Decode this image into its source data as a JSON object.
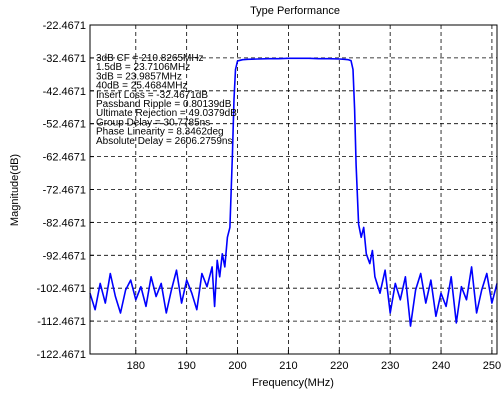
{
  "chart_data": {
    "type": "line",
    "title": "Type Performance",
    "xlabel": "Frequency(MHz)",
    "ylabel": "Magnitude(dB)",
    "xlim": [
      171,
      251
    ],
    "ylim": [
      -122.4671,
      -22.4671
    ],
    "x_ticks": [
      180,
      190,
      200,
      210,
      220,
      230,
      240,
      250
    ],
    "x_tick_labels": [
      "180",
      "190",
      "200",
      "210",
      "220",
      "230",
      "240",
      "250"
    ],
    "y_ticks": [
      -22.4671,
      -32.4671,
      -42.4671,
      -52.4671,
      -62.4671,
      -72.4671,
      -82.4671,
      -92.4671,
      -102.4671,
      -112.4671,
      -122.4671
    ],
    "y_tick_labels": [
      "-22.4671",
      "-32.4671",
      "-42.4671",
      "-52.4671",
      "-62.4671",
      "-72.4671",
      "-82.4671",
      "-92.4671",
      "-102.4671",
      "-112.4671",
      "-122.4671"
    ],
    "grid": true,
    "line_color": "#0000ff",
    "annotations": [
      "3dB CF = 210.8265MHz",
      "1.5dB = 23.7106MHz",
      "3dB = 23.9857MHz",
      "40dB = 25.4684MHz",
      "Insert Loss = -32.4671dB",
      "Passband Ripple = 0.80139dB",
      "Ultimate Rejection = 49.0379dB",
      "Group Delay = 30.7785ns",
      "Phase Linearity = 8.3462deg",
      "Absolute Delay = 2606.2759ns"
    ],
    "series": [
      {
        "x": [
          171,
          172,
          173,
          174,
          175,
          176,
          177,
          178,
          179,
          180,
          181,
          182,
          183,
          184,
          185,
          186,
          187,
          188,
          189,
          190,
          191,
          192,
          193,
          194,
          195,
          195.5,
          196,
          196.5,
          197,
          197.5,
          198,
          198.5,
          199,
          199.3,
          199.6,
          200,
          200.5,
          201,
          202,
          204,
          206,
          208,
          210,
          212,
          214,
          216,
          218,
          220,
          221,
          221.8,
          222.3,
          222.7,
          223,
          223.3,
          223.8,
          224.3,
          224.8,
          225.3,
          226,
          226.5,
          227,
          228,
          229,
          230,
          231,
          232,
          233,
          234,
          235,
          236,
          237,
          238,
          239,
          240,
          241,
          242,
          243,
          244,
          245,
          246,
          247,
          248,
          249,
          250,
          251
        ],
        "y": [
          -104,
          -109,
          -101,
          -107,
          -98,
          -105,
          -110,
          -103,
          -100,
          -106,
          -102,
          -108,
          -99,
          -105,
          -101,
          -110,
          -103,
          -97,
          -107,
          -100,
          -104,
          -109,
          -98,
          -102,
          -96,
          -108,
          -94,
          -99,
          -92,
          -96,
          -87,
          -84,
          -62,
          -45,
          -36,
          -33.4,
          -33.2,
          -33.0,
          -32.9,
          -32.8,
          -32.7,
          -32.7,
          -32.6,
          -32.6,
          -32.6,
          -32.7,
          -32.7,
          -32.8,
          -32.9,
          -33.0,
          -33.3,
          -36,
          -48,
          -65,
          -83,
          -87,
          -84,
          -92,
          -95,
          -91,
          -99,
          -104,
          -97,
          -110,
          -101,
          -106,
          -99,
          -114,
          -103,
          -98,
          -107,
          -100,
          -111,
          -104,
          -108,
          -99,
          -113,
          -102,
          -106,
          -96,
          -110,
          -103,
          -98,
          -107,
          -101
        ]
      }
    ]
  }
}
